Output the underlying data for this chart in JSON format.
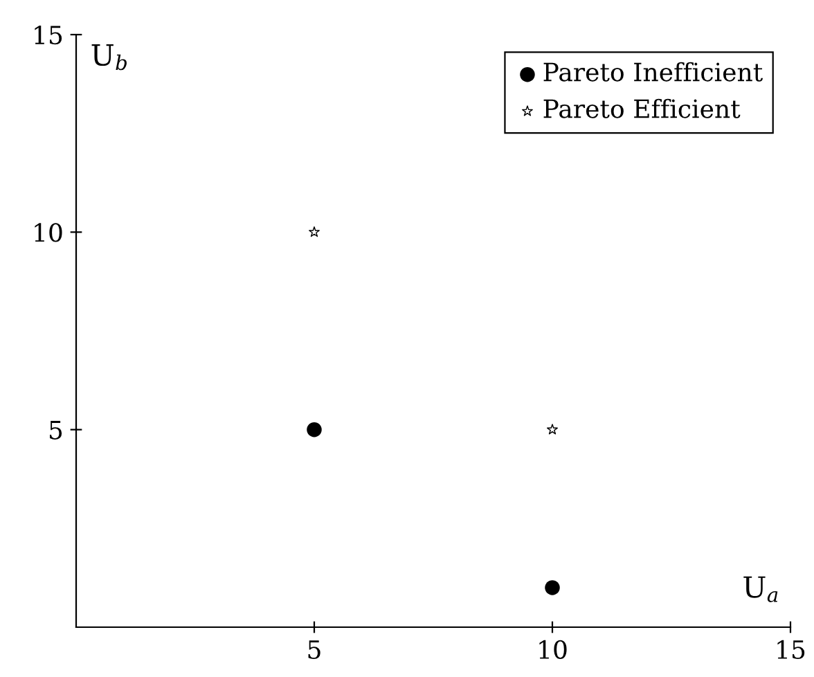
{
  "chart_data": {
    "type": "scatter",
    "xlabel": "U$_{a}$",
    "ylabel": "U$_{b}$",
    "xlim": [
      0,
      15
    ],
    "ylim": [
      0,
      15
    ],
    "xticks": [
      5,
      10,
      15
    ],
    "yticks": [
      5,
      10,
      15
    ],
    "x": [
      5,
      10
    ],
    "grid": false,
    "legend": "top right",
    "series": [
      {
        "name": "Pareto Inefficient",
        "color": "#000000",
        "marker": "circle",
        "values": [
          5,
          1
        ]
      },
      {
        "name": "Pareto Efficient",
        "color": "#000000",
        "marker": "star",
        "values": [
          10,
          5
        ]
      }
    ]
  }
}
